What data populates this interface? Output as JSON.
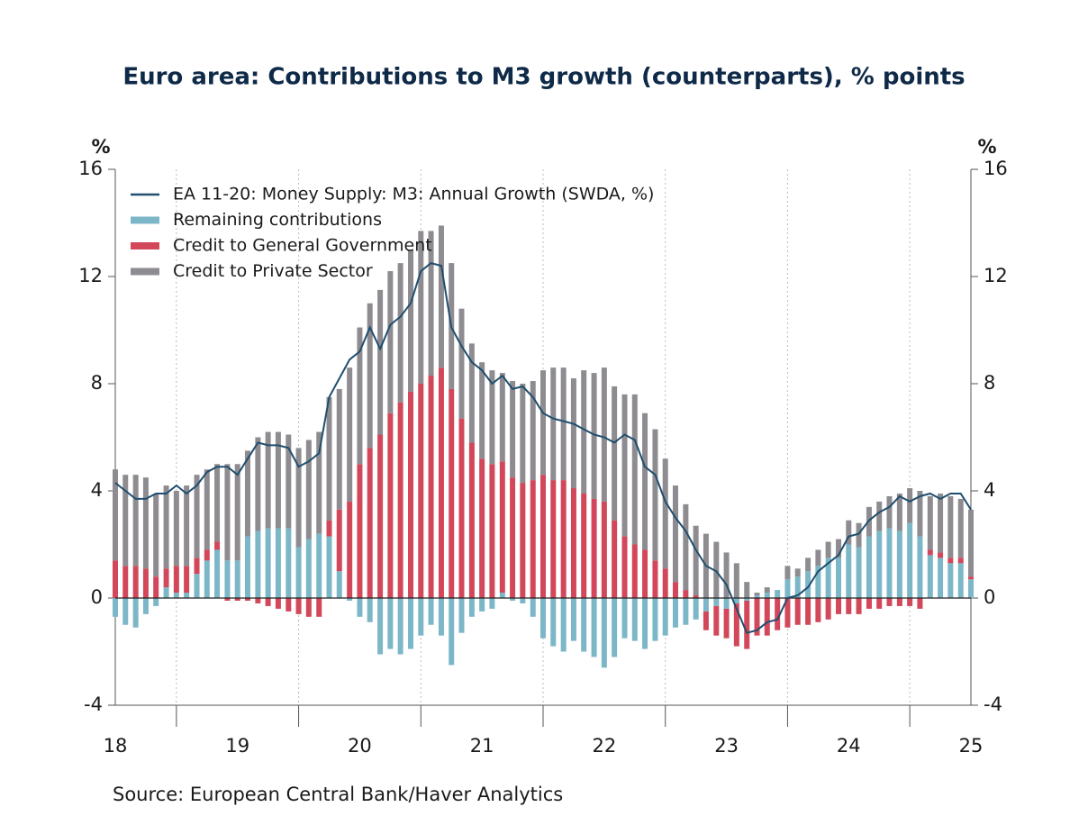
{
  "chart_data": {
    "type": "bar",
    "title": "Euro area: Contributions to M3 growth (counterparts), % points",
    "y_label": "%",
    "y2_label": "%",
    "source": "Source:  European Central Bank/Haver Analytics",
    "xlim": [
      18,
      25
    ],
    "xticks": [
      18,
      19,
      20,
      21,
      22,
      23,
      24,
      25
    ],
    "ylim": [
      -4,
      16
    ],
    "yticks": [
      -4,
      0,
      4,
      8,
      12,
      16
    ],
    "y2lim": [
      -4,
      16
    ],
    "y2ticks": [
      -4,
      0,
      4,
      8,
      12,
      16
    ],
    "legend": "upper left",
    "x": [
      18,
      18.083,
      18.167,
      18.25,
      18.333,
      18.417,
      18.5,
      18.583,
      18.667,
      18.75,
      18.833,
      18.917,
      19,
      19.083,
      19.167,
      19.25,
      19.333,
      19.417,
      19.5,
      19.583,
      19.667,
      19.75,
      19.833,
      19.917,
      20,
      20.083,
      20.167,
      20.25,
      20.333,
      20.417,
      20.5,
      20.583,
      20.667,
      20.75,
      20.833,
      20.917,
      21,
      21.083,
      21.167,
      21.25,
      21.333,
      21.417,
      21.5,
      21.583,
      21.667,
      21.75,
      21.833,
      21.917,
      22,
      22.083,
      22.167,
      22.25,
      22.333,
      22.417,
      22.5,
      22.583,
      22.667,
      22.75,
      22.833,
      22.917,
      23,
      23.083,
      23.167,
      23.25,
      23.333,
      23.417,
      23.5,
      23.583,
      23.667,
      23.75,
      23.833,
      23.917,
      24,
      24.083,
      24.167,
      24.25,
      24.333,
      24.417,
      24.5,
      24.583,
      24.667,
      24.75,
      24.833,
      24.917,
      25
    ],
    "series": [
      {
        "name": "EA 11-20: Money Supply: M3: Annual Growth (SWDA, %)",
        "kind": "line",
        "color": "#1f4e6e",
        "values": [
          4.3,
          4.0,
          3.7,
          3.7,
          3.9,
          3.9,
          4.2,
          3.9,
          4.2,
          4.7,
          4.9,
          4.9,
          4.6,
          5.2,
          5.8,
          5.7,
          5.7,
          5.6,
          4.9,
          5.1,
          5.4,
          7.5,
          8.2,
          8.9,
          9.2,
          10.1,
          9.3,
          10.2,
          10.5,
          11.0,
          12.2,
          12.5,
          12.4,
          10.1,
          9.4,
          8.8,
          8.5,
          8.0,
          8.3,
          7.8,
          7.9,
          7.5,
          6.9,
          6.7,
          6.6,
          6.5,
          6.3,
          6.1,
          6.0,
          5.8,
          6.1,
          5.9,
          4.9,
          4.6,
          3.6,
          3.0,
          2.5,
          1.8,
          1.2,
          1.0,
          0.5,
          -0.4,
          -1.3,
          -1.2,
          -0.9,
          -0.8,
          0.0,
          0.1,
          0.4,
          1.0,
          1.3,
          1.6,
          2.3,
          2.4,
          2.9,
          3.2,
          3.4,
          3.8,
          3.6,
          3.8,
          3.9,
          3.7,
          3.9,
          3.9,
          3.3
        ]
      },
      {
        "name": "Remaining contributions",
        "kind": "bar",
        "color": "#7cb7c8",
        "values": [
          -0.7,
          -1.0,
          -1.1,
          -0.6,
          -0.3,
          0.4,
          0.2,
          0.2,
          0.9,
          1.4,
          1.8,
          1.4,
          1.4,
          2.3,
          2.5,
          2.6,
          2.6,
          2.6,
          1.9,
          2.2,
          2.4,
          2.3,
          1.0,
          -0.1,
          -0.7,
          -0.9,
          -2.1,
          -1.9,
          -2.1,
          -1.9,
          -1.4,
          -1.0,
          -1.4,
          -2.5,
          -1.3,
          -0.7,
          -0.5,
          -0.4,
          0.2,
          -0.1,
          -0.2,
          -0.7,
          -1.5,
          -1.8,
          -2.0,
          -1.6,
          -2.0,
          -2.2,
          -2.6,
          -2.2,
          -1.5,
          -1.6,
          -1.9,
          -1.6,
          -1.4,
          -1.1,
          -1.0,
          -0.8,
          -0.5,
          -0.3,
          -0.4,
          -0.2,
          -0.1,
          0.1,
          0.2,
          0.3,
          0.7,
          0.8,
          1.0,
          1.2,
          1.5,
          1.5,
          2.0,
          1.9,
          2.3,
          2.5,
          2.6,
          2.5,
          2.8,
          2.3,
          1.6,
          1.5,
          1.3,
          1.3,
          0.7
        ]
      },
      {
        "name": "Credit to General Government",
        "kind": "bar",
        "color": "#d2475a",
        "values": [
          1.4,
          1.2,
          1.2,
          1.1,
          0.8,
          0.7,
          1.0,
          1.0,
          0.6,
          0.4,
          0.3,
          -0.1,
          -0.1,
          -0.1,
          -0.2,
          -0.3,
          -0.4,
          -0.5,
          -0.6,
          -0.7,
          -0.7,
          0.6,
          2.3,
          3.6,
          5.0,
          5.6,
          6.1,
          6.9,
          7.3,
          7.7,
          8.0,
          8.3,
          8.6,
          7.8,
          6.7,
          5.8,
          5.2,
          5.0,
          4.9,
          4.5,
          4.3,
          4.4,
          4.6,
          4.4,
          4.4,
          4.1,
          3.9,
          3.7,
          3.6,
          2.9,
          2.3,
          2.0,
          1.8,
          1.4,
          1.1,
          0.6,
          0.3,
          0.1,
          -0.7,
          -1.1,
          -1.1,
          -1.6,
          -1.8,
          -1.4,
          -1.4,
          -1.2,
          -1.1,
          -1.0,
          -1.0,
          -0.9,
          -0.8,
          -0.6,
          -0.6,
          -0.6,
          -0.4,
          -0.4,
          -0.3,
          -0.3,
          -0.3,
          -0.4,
          0.2,
          0.2,
          0.2,
          0.2,
          0.1
        ]
      },
      {
        "name": "Credit to Private Sector",
        "kind": "bar",
        "color": "#8e8c90",
        "values": [
          3.4,
          3.4,
          3.4,
          3.4,
          3.1,
          3.1,
          2.8,
          3.0,
          3.1,
          3.0,
          2.9,
          3.6,
          3.6,
          3.2,
          3.5,
          3.6,
          3.6,
          3.5,
          3.7,
          3.7,
          3.8,
          4.6,
          4.5,
          5.0,
          5.1,
          5.4,
          5.4,
          5.3,
          5.2,
          5.3,
          5.7,
          5.4,
          5.3,
          4.7,
          4.1,
          3.7,
          3.6,
          3.5,
          3.3,
          3.6,
          3.7,
          3.7,
          3.9,
          4.2,
          4.2,
          4.1,
          4.6,
          4.7,
          5.0,
          5.0,
          5.3,
          5.6,
          5.1,
          4.9,
          4.1,
          3.6,
          3.2,
          2.6,
          2.4,
          2.1,
          1.7,
          1.3,
          0.6,
          0.1,
          0.2,
          0.0,
          0.5,
          0.3,
          0.5,
          0.6,
          0.6,
          0.7,
          0.9,
          0.9,
          1.1,
          1.1,
          1.2,
          1.4,
          1.3,
          1.7,
          2.0,
          2.2,
          2.3,
          2.2,
          2.5
        ]
      }
    ]
  }
}
